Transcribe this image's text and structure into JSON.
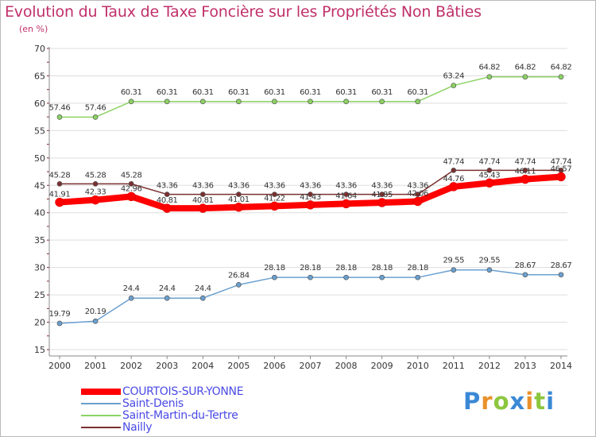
{
  "title": "Evolution du Taux de Taxe Foncière sur les Propriétés Non Bâties",
  "subtitle": "(en %)",
  "logo": {
    "text": "Proxiti",
    "letters": [
      "P",
      "r",
      "o",
      "x",
      "i",
      "t",
      "i"
    ]
  },
  "colors": {
    "axis": "#888888",
    "grid": "#dddddd",
    "tickMark": "#8b2020",
    "text": "#333333"
  },
  "chart_data": {
    "type": "line",
    "title": "Evolution du Taux de Taxe Foncière sur les Propriétés Non Bâties",
    "ylabel": "(en %)",
    "xlabel": "",
    "ylim": [
      15,
      70
    ],
    "yticks": [
      15,
      20,
      25,
      30,
      35,
      40,
      45,
      50,
      55,
      60,
      65,
      70
    ],
    "x": [
      "2000",
      "2001",
      "2002",
      "2003",
      "2004",
      "2005",
      "2006",
      "2007",
      "2008",
      "2009",
      "2010",
      "2011",
      "2012",
      "2013",
      "2014"
    ],
    "grid": true,
    "legend": "bottom-left",
    "series": [
      {
        "name": "COURTOIS-SUR-YONNE",
        "color": "#ff0000",
        "width": 8,
        "labels": false,
        "values": [
          41.91,
          42.33,
          42.96,
          40.81,
          40.81,
          41.01,
          41.22,
          41.43,
          41.64,
          41.85,
          42.06,
          44.76,
          45.43,
          46.11,
          46.57
        ]
      },
      {
        "name": "Saint-Denis",
        "color": "#6aa0cf",
        "width": 1.5,
        "labels": true,
        "values": [
          19.79,
          20.19,
          24.4,
          24.4,
          24.4,
          26.84,
          28.18,
          28.18,
          28.18,
          28.18,
          28.18,
          29.55,
          29.55,
          28.67,
          28.67
        ]
      },
      {
        "name": "Saint-Martin-du-Tertre",
        "color": "#8cd264",
        "width": 1.5,
        "labels": true,
        "values": [
          57.46,
          57.46,
          60.31,
          60.31,
          60.31,
          60.31,
          60.31,
          60.31,
          60.31,
          60.31,
          60.31,
          63.24,
          64.82,
          64.82,
          64.82
        ]
      },
      {
        "name": "Nailly",
        "color": "#7a3030",
        "width": 1.5,
        "labels": true,
        "values": [
          45.28,
          45.28,
          45.28,
          43.36,
          43.36,
          43.36,
          43.36,
          43.36,
          43.36,
          43.36,
          43.36,
          47.74,
          47.74,
          47.74,
          47.74
        ]
      }
    ],
    "point_labels": {
      "COURTOIS-SUR-YONNE": [
        "41.91",
        "42.33",
        "42.96",
        "40.81",
        "40.81",
        "41.01",
        "41.22",
        "41.43",
        "41.64",
        "41.85",
        "42.06",
        "44.76",
        "45.43",
        "46.11",
        "46.57"
      ],
      "Saint-Denis": [
        "19.79",
        "20.19",
        "24.4",
        "24.4",
        "24.4",
        "26.84",
        "28.18",
        "28.18",
        "28.18",
        "28.18",
        "28.18",
        "29.55",
        "29.55",
        "28.67",
        "28.67"
      ],
      "Saint-Martin-du-Tertre": [
        "57.46",
        "57.46",
        "60.31",
        "60.31",
        "60.31",
        "60.31",
        "60.31",
        "60.31",
        "60.31",
        "60.31",
        "60.31",
        "63.24",
        "64.82",
        "64.82",
        "64.82"
      ],
      "Nailly": [
        "45.28",
        "45.28",
        "45.28",
        "43.36",
        "43.36",
        "43.36",
        "43.36",
        "43.36",
        "43.36",
        "43.36",
        "43.36",
        "47.74",
        "47.74",
        "47.74",
        "47.74"
      ]
    }
  }
}
